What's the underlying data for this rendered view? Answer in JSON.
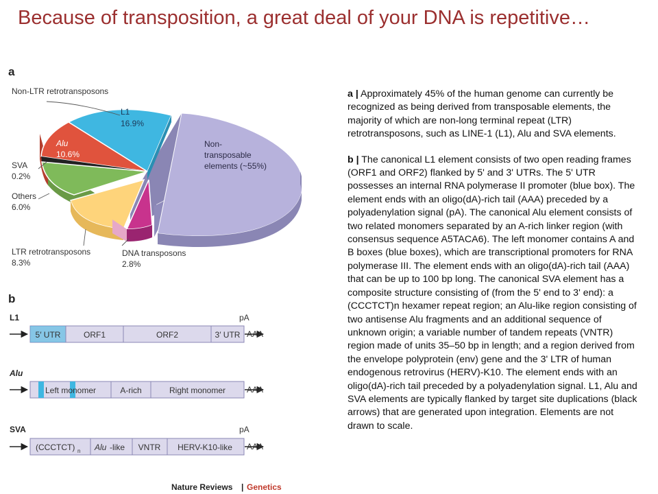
{
  "slide": {
    "title": "Because of transposition, a great deal of your DNA is repetitive…"
  },
  "panel_a": {
    "label": "a",
    "labels": {
      "non_ltr": "Non-LTR retrotransposons",
      "l1": "L1",
      "l1_pct": "16.9%",
      "alu": "Alu",
      "alu_pct": "10.6%",
      "sva": "SVA",
      "sva_pct": "0.2%",
      "others": "Others",
      "others_pct": "6.0%",
      "ltr": "LTR retrotransposons",
      "ltr_pct": "8.3%",
      "dna": "DNA transposons",
      "dna_pct": "2.8%",
      "nontrans_1": "Non-",
      "nontrans_2": "transposable",
      "nontrans_3": "elements (~55%)"
    },
    "chart_data": {
      "type": "pie",
      "categories": [
        "Non-transposable elements",
        "L1",
        "Alu",
        "SVA",
        "Others",
        "LTR retrotransposons",
        "DNA transposons"
      ],
      "values": [
        55,
        16.9,
        10.6,
        0.2,
        6.0,
        8.3,
        2.8
      ],
      "colors": [
        "#b7b2dc",
        "#3fb7e1",
        "#e0533d",
        "#222222",
        "#7fba5a",
        "#fed47b",
        "#c8338d"
      ]
    }
  },
  "panel_b": {
    "label": "b",
    "l1": {
      "name": "L1",
      "pa": "pA",
      "aaa": "AAA",
      "seg_utr5": "5′ UTR",
      "seg_orf1": "ORF1",
      "seg_orf2": "ORF2",
      "seg_utr3": "3′ UTR"
    },
    "alu": {
      "name": "Alu",
      "aaa": "AAA",
      "seg_left": "Left monomer",
      "seg_arich": "A-rich",
      "seg_right": "Right monomer"
    },
    "sva": {
      "name": "SVA",
      "pa": "pA",
      "aaa": "AAA",
      "seg_ccctct": "(CCCTCT)",
      "seg_n": "n",
      "seg_alulike_it": "Alu",
      "seg_alulike": "-like",
      "seg_vntr": "VNTR",
      "seg_herv": "HERV-K10-like"
    }
  },
  "credit": {
    "journal": "Nature Reviews",
    "sep": "|",
    "section": "Genetics"
  },
  "caption": {
    "a_lead": "a |",
    "a_text": "Approximately 45% of the human genome can currently be recognized as being derived from transposable elements, the majority of which are non-long terminal repeat (LTR) retrotransposons, such as LINE-1 (L1), Alu and SVA elements.",
    "b_lead": "b |",
    "b_text": "The canonical L1 element consists of two open reading frames (ORF1 and ORF2) flanked by 5' and 3' UTRs. The 5' UTR possesses an internal RNA polymerase II promoter (blue box). The element ends with an oligo(dA)-rich tail (AAA) preceded by a polyadenylation signal (pA). The canonical Alu element consists of two related monomers separated by an A-rich linker region (with consensus sequence A5TACA6). The left monomer contains A and B boxes (blue boxes), which are transcriptional promoters for RNA polymerase III. The element ends with an oligo(dA)-rich tail (AAA) that can be up to 100 bp long. The canonical SVA element has a composite structure consisting of (from the 5' end to 3' end): a (CCCTCT)n hexamer repeat region; an Alu-like region consisting of two antisense Alu fragments and an additional sequence of unknown origin; a variable number of tandem repeats (VNTR) region made of units 35–50 bp in length; and a region derived from the envelope polyprotein (env) gene and the 3' LTR of human endogenous retrovirus (HERV)-K10. The element ends with an oligo(dA)-rich tail preceded by a polyadenylation signal. L1, Alu and SVA elements are typically flanked by target site duplications (black arrows) that are generated upon integration. Elements are not drawn to scale."
  }
}
